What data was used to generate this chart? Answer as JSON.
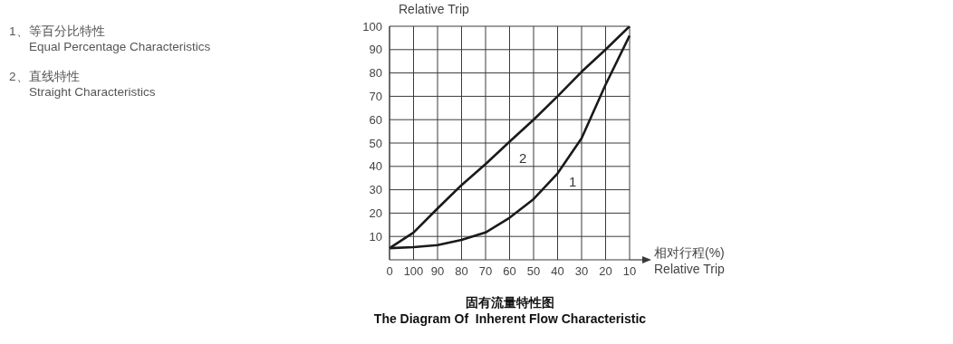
{
  "chart_data": {
    "type": "line",
    "title": "固有流量特性图",
    "subtitle": "The Diagram Of  Inherent Flow Characteristic",
    "xlabel": "相对行程(%)\nRelative Trip",
    "ylabel": "Relative Trip",
    "annotations": [
      "1、等百分比特性\nEqual Percentage Characteristics",
      "2、直线特性\nStraight Characteristics"
    ],
    "categories": [
      "0",
      "100",
      "90",
      "80",
      "70",
      "60",
      "50",
      "40",
      "30",
      "20",
      "10"
    ],
    "series": [
      {
        "name": "1",
        "color": "#1a1a1a",
        "values": [
          5,
          5.4,
          6.3,
          8.5,
          11.7,
          18,
          26,
          37,
          52,
          75,
          96
        ]
      },
      {
        "name": "2",
        "color": "#1a1a1a",
        "values": [
          5,
          11.7,
          22,
          32,
          41,
          50.6,
          60,
          70,
          80.5,
          90,
          100
        ]
      }
    ],
    "ylim": [
      0,
      100
    ],
    "yticks": [
      10,
      20,
      30,
      40,
      50,
      60,
      70,
      80,
      90,
      100
    ],
    "grid": true,
    "legend": false,
    "marker": "none",
    "line_style": "solid"
  }
}
